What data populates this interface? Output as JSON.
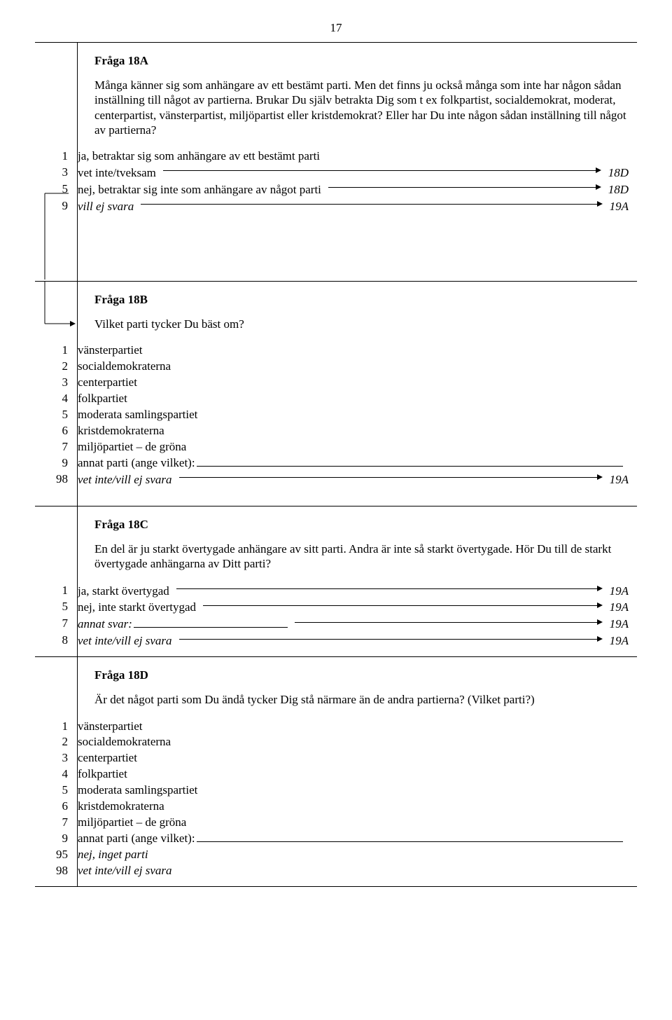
{
  "page_number": "17",
  "q18a": {
    "title": "Fråga 18A",
    "body": "Många känner sig som anhängare av ett bestämt parti. Men det finns ju också många som inte har någon sådan inställning till något av partierna. Brukar Du själv betrakta Dig som t ex folkpartist, socialdemokrat, moderat, centerpartist, vänsterpartist, miljöpartist eller kristdemokrat? Eller har Du inte någon sådan inställning till något av partierna?",
    "answers": [
      {
        "code": "1",
        "label": "ja, betraktar sig som anhängare av ett bestämt parti",
        "target": ""
      },
      {
        "code": "3",
        "label": "vet inte/tveksam",
        "target": "18D"
      },
      {
        "code": "5",
        "label": "nej, betraktar sig inte som anhängare av något parti",
        "target": "18D"
      },
      {
        "code": "9",
        "label": "vill ej svara",
        "italic": true,
        "target": "19A"
      }
    ]
  },
  "q18b": {
    "title": "Fråga 18B",
    "lead": "Vilket parti tycker Du bäst om?",
    "answers": [
      {
        "code": "1",
        "label": "vänsterpartiet"
      },
      {
        "code": "2",
        "label": "socialdemokraterna"
      },
      {
        "code": "3",
        "label": "centerpartiet"
      },
      {
        "code": "4",
        "label": "folkpartiet"
      },
      {
        "code": "5",
        "label": "moderata samlingspartiet"
      },
      {
        "code": "6",
        "label": "kristdemokraterna"
      },
      {
        "code": "7",
        "label": "miljöpartiet – de gröna"
      },
      {
        "code": "9",
        "label": "annat parti (ange vilket):",
        "fill": true
      },
      {
        "code": "98",
        "label": "vet inte/vill ej svara",
        "italic": true,
        "target": "19A"
      }
    ]
  },
  "q18c": {
    "title": "Fråga 18C",
    "body": "En del är ju starkt övertygade anhängare av sitt parti. Andra är inte så starkt övertygade. Hör Du till de starkt övertygade anhängarna av Ditt parti?",
    "answers": [
      {
        "code": "1",
        "label": "ja, starkt övertygad",
        "target": "19A"
      },
      {
        "code": "5",
        "label": "nej, inte starkt övertygad",
        "target": "19A"
      },
      {
        "code": "7",
        "label": "annat svar:",
        "italic": true,
        "fill_mid": true,
        "target": "19A"
      },
      {
        "code": "8",
        "label": "vet inte/vill ej svara",
        "italic": true,
        "target": "19A"
      }
    ]
  },
  "q18d": {
    "title": "Fråga 18D",
    "body": "Är det något parti som Du ändå tycker Dig stå närmare än de andra partierna? (Vilket parti?)",
    "answers": [
      {
        "code": "1",
        "label": "vänsterpartiet"
      },
      {
        "code": "2",
        "label": "socialdemokraterna"
      },
      {
        "code": "3",
        "label": "centerpartiet"
      },
      {
        "code": "4",
        "label": "folkpartiet"
      },
      {
        "code": "5",
        "label": "moderata samlingspartiet"
      },
      {
        "code": "6",
        "label": "kristdemokraterna"
      },
      {
        "code": "7",
        "label": "miljöpartiet – de gröna"
      },
      {
        "code": "9",
        "label": "annat parti (ange vilket):",
        "fill": true
      },
      {
        "code": "95",
        "label": "nej, inget parti",
        "italic": true
      },
      {
        "code": "98",
        "label": "vet inte/vill ej svara",
        "italic": true
      }
    ]
  }
}
